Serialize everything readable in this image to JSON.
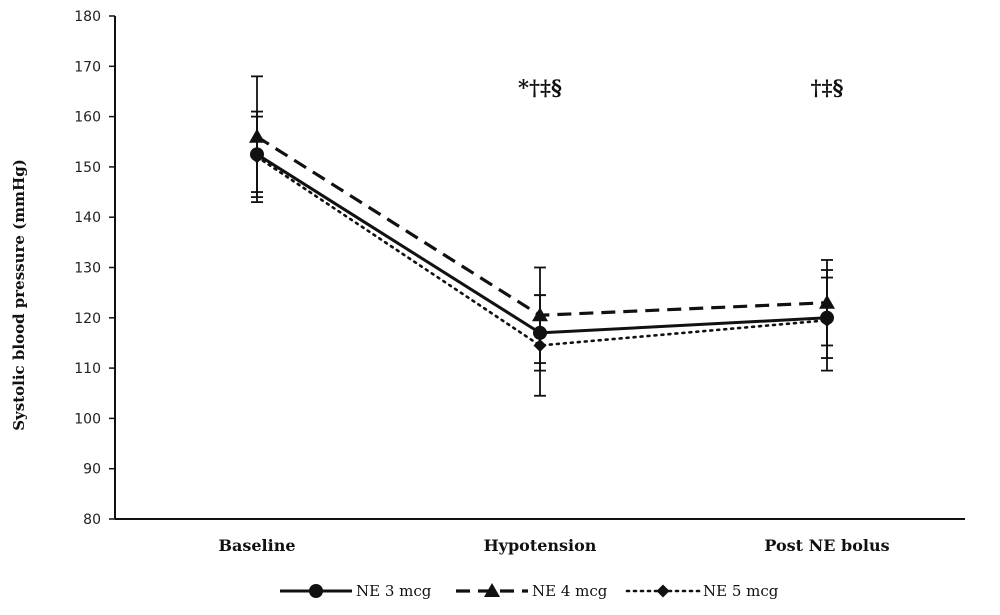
{
  "chart_data": {
    "type": "line",
    "ylabel": "Systolic blood pressure (mmHg)",
    "xlabel": "",
    "ylim": [
      80,
      180
    ],
    "yticks": [
      80,
      90,
      100,
      110,
      120,
      130,
      140,
      150,
      160,
      170,
      180
    ],
    "categories": [
      "Baseline",
      "Hypotension",
      "Post NE bolus"
    ],
    "series": [
      {
        "name": "NE 3 mcg",
        "style": "solid",
        "marker": "circle",
        "values": [
          152.5,
          117,
          120
        ],
        "error": [
          7.5,
          7.5,
          8
        ]
      },
      {
        "name": "NE 4 mcg",
        "style": "dashed",
        "marker": "triangle",
        "values": [
          156,
          120.5,
          123
        ],
        "error": [
          12,
          9.5,
          8.5
        ]
      },
      {
        "name": "NE 5 mcg",
        "style": "dotted",
        "marker": "diamond",
        "values": [
          152,
          114.5,
          119.5
        ],
        "error": [
          9,
          10,
          10
        ]
      }
    ],
    "annotations": [
      {
        "category": "Hypotension",
        "text": "*†‡§"
      },
      {
        "category": "Post NE bolus",
        "text": "†‡§"
      }
    ],
    "legend": "bottom",
    "grid": false,
    "color": "#111111"
  }
}
